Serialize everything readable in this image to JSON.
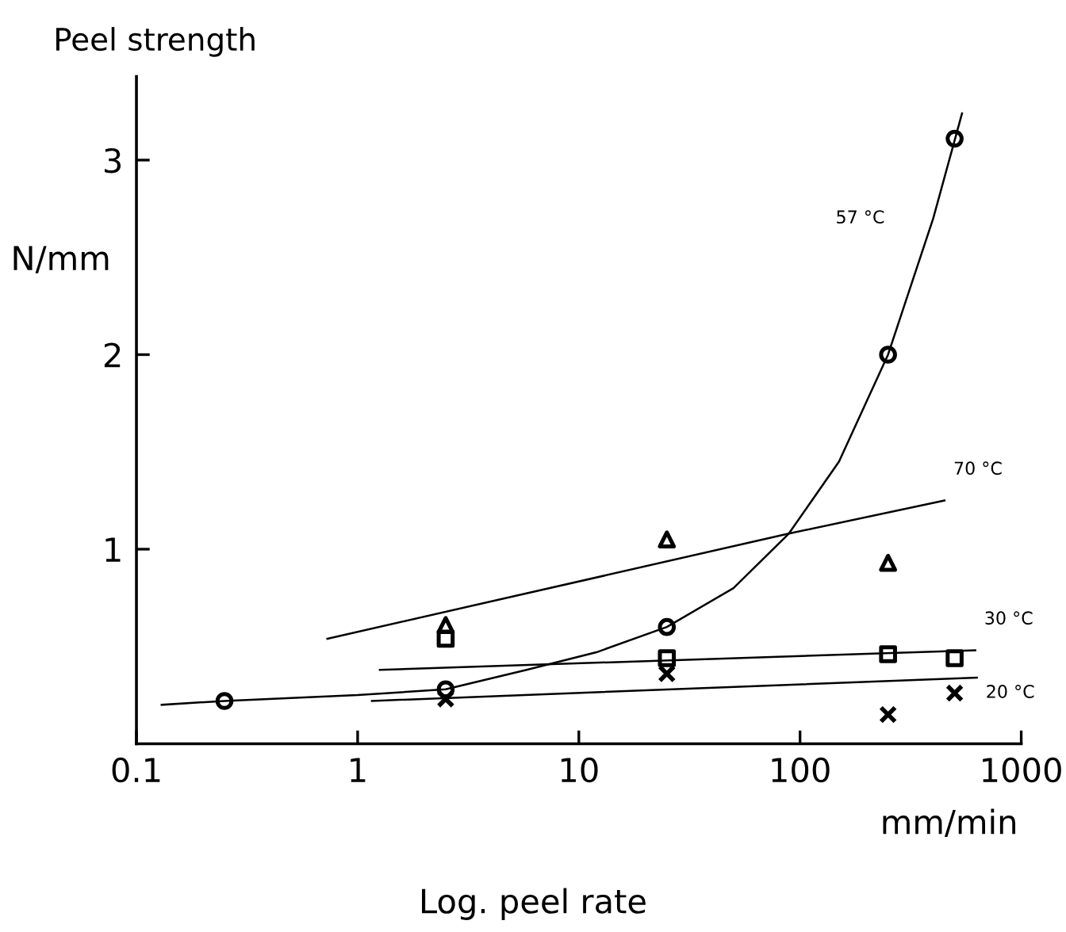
{
  "chart_data": {
    "type": "scatter",
    "title": "Peel strength",
    "ylabel": "N/mm",
    "xlabel": "Log. peel rate",
    "log": "x",
    "xlim": [
      0.1,
      1000
    ],
    "xticks": [
      {
        "value": 0.1,
        "label": "0.1"
      },
      1,
      10,
      100,
      1000
    ],
    "ylim": [
      0,
      3.43
    ],
    "yticks": [
      1,
      2,
      3
    ],
    "grid": false,
    "legend": false,
    "series": [
      {
        "marker": "circle",
        "color": "#000000",
        "x": [
          0.25,
          2.5,
          25,
          250,
          500
        ],
        "values": [
          0.22,
          0.28,
          0.6,
          2.0,
          3.11
        ]
      },
      {
        "marker": "triangle",
        "color": "#000000",
        "x": [
          2.5,
          25,
          250
        ],
        "values": [
          0.61,
          1.05,
          0.93
        ]
      },
      {
        "marker": "square",
        "color": "#000000",
        "x": [
          2.5,
          25,
          250,
          500
        ],
        "values": [
          0.54,
          0.44,
          0.46,
          0.44
        ]
      },
      {
        "marker": "cross",
        "color": "#000000",
        "x": [
          2.5,
          25,
          250,
          500
        ],
        "values": [
          0.23,
          0.36,
          0.15,
          0.26
        ]
      },
      {
        "type": "line",
        "name": "57 °C",
        "marker": "none",
        "color": "#000000",
        "x": [
          0.13,
          0.25,
          1,
          2.5,
          5.8,
          12,
          25,
          50,
          89,
          150,
          250,
          400,
          540
        ],
        "values": [
          0.2,
          0.22,
          0.25,
          0.28,
          0.38,
          0.47,
          0.6,
          0.8,
          1.08,
          1.45,
          2.0,
          2.7,
          3.24
        ]
      },
      {
        "type": "line",
        "name": "70 °C",
        "marker": "none",
        "color": "#000000",
        "x": [
          0.73,
          89,
          450
        ],
        "values": [
          0.54,
          1.08,
          1.25
        ]
      },
      {
        "type": "line",
        "name": "30 °C",
        "marker": "none",
        "color": "#000000",
        "x": [
          1.26,
          620
        ],
        "values": [
          0.38,
          0.48
        ]
      },
      {
        "type": "line",
        "name": "20 °C",
        "marker": "none",
        "color": "#000000",
        "x": [
          1.16,
          630
        ],
        "values": [
          0.22,
          0.34
        ]
      }
    ],
    "annotations": [
      "mm/min"
    ]
  }
}
